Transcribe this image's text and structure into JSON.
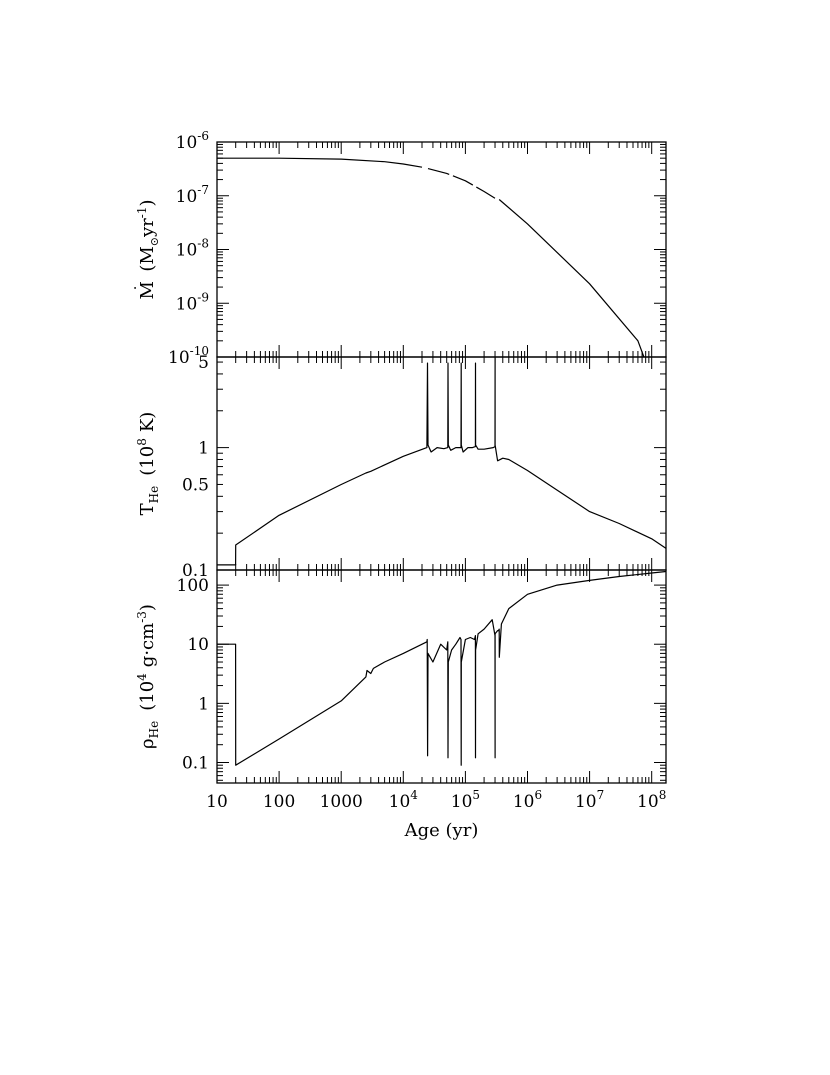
{
  "chart_data": [
    {
      "type": "line",
      "xscale": "log",
      "yscale": "log",
      "xlim": [
        10,
        170000000
      ],
      "ylim": [
        1e-10,
        1e-06
      ],
      "ylabel_main": "M",
      "ylabel_units": "(M",
      "ylabel_units_tail": "yr",
      "ylabel_units_exp": "-1",
      "ylabel_units_close": ")",
      "ylabel_sun": "⊙",
      "ytick_labels": [
        {
          "v": 1e-06,
          "base": "10",
          "exp": "-6"
        },
        {
          "v": 1e-07,
          "base": "10",
          "exp": "-7"
        },
        {
          "v": 1e-08,
          "base": "10",
          "exp": "-8"
        },
        {
          "v": 1e-09,
          "base": "10",
          "exp": "-9"
        },
        {
          "v": 1e-10,
          "base": "10",
          "exp": "-10"
        }
      ],
      "series": [
        {
          "style": "solid",
          "x": [
            10,
            100,
            1000,
            5000,
            10000,
            20000
          ],
          "y": [
            5e-07,
            5e-07,
            4.8e-07,
            4.3e-07,
            3.9e-07,
            3.4e-07
          ]
        },
        {
          "style": "dashed",
          "x": [
            25000,
            50000,
            100000,
            200000,
            300000
          ],
          "y": [
            3.2e-07,
            2.6e-07,
            1.9e-07,
            1.2e-07,
            9e-08
          ]
        },
        {
          "style": "solid",
          "x": [
            350000,
            1000000,
            10000000,
            60000000,
            75000000
          ],
          "y": [
            8.5e-08,
            3e-08,
            2.3e-09,
            2e-10,
            1e-10
          ]
        }
      ]
    },
    {
      "type": "line",
      "xscale": "log",
      "yscale": "log",
      "xlim": [
        10,
        170000000
      ],
      "ylim": [
        0.1,
        5.5
      ],
      "ylabel_main": "T",
      "ylabel_sub": "He",
      "ylabel_units": "(10",
      "ylabel_units_exp": "8",
      "ylabel_units_tail": "K)",
      "ytick_labels": [
        {
          "v": 5,
          "text": "5"
        },
        {
          "v": 1,
          "text": "1"
        },
        {
          "v": 0.5,
          "text": "0.5"
        },
        {
          "v": 0.1,
          "text": "0.1"
        }
      ],
      "series": [
        {
          "style": "solid",
          "x": [
            10,
            19.9,
            20,
            100,
            1000,
            2500,
            3000,
            10000,
            24000,
            24500,
            25000,
            28000,
            35000,
            45000,
            52000,
            52500,
            53000,
            58000,
            70000,
            80000,
            85000,
            85500,
            86000,
            92000,
            110000,
            130000,
            145000,
            145500,
            146000,
            160000,
            200000,
            280000,
            300000,
            300500,
            301000,
            330000,
            400000,
            500000,
            1000000,
            3000000,
            10000000,
            30000000,
            100000000,
            170000000
          ],
          "y": [
            0.11,
            0.11,
            0.16,
            0.28,
            0.5,
            0.62,
            0.64,
            0.85,
            1.0,
            4.9,
            1.05,
            0.92,
            1.0,
            0.98,
            1.0,
            4.9,
            1.05,
            0.95,
            1.0,
            1.0,
            1.0,
            4.9,
            1.05,
            0.92,
            1.0,
            1.0,
            1.02,
            4.9,
            1.05,
            0.97,
            0.97,
            1.0,
            1.02,
            5.5,
            1.05,
            0.78,
            0.82,
            0.8,
            0.65,
            0.45,
            0.3,
            0.24,
            0.18,
            0.15
          ]
        }
      ]
    },
    {
      "type": "line",
      "xscale": "log",
      "yscale": "log",
      "xlim": [
        10,
        170000000
      ],
      "ylim": [
        0.045,
        180
      ],
      "ylabel_main": "ρ",
      "ylabel_sub": "He",
      "ylabel_units": "(10",
      "ylabel_units_exp": "4",
      "ylabel_units_tail": "g·cm",
      "ylabel_units_exp2": "-3",
      "ylabel_units_close": ")",
      "xlabel": "Age (yr)",
      "ytick_labels": [
        {
          "v": 100,
          "text": "100"
        },
        {
          "v": 10,
          "text": "10"
        },
        {
          "v": 1,
          "text": "1"
        },
        {
          "v": 0.1,
          "text": "0.1"
        }
      ],
      "xtick_labels": [
        {
          "v": 10,
          "text": "10"
        },
        {
          "v": 100,
          "text": "100"
        },
        {
          "v": 1000,
          "text": "1000"
        },
        {
          "v": 10000,
          "base": "10",
          "exp": "4"
        },
        {
          "v": 100000,
          "base": "10",
          "exp": "5"
        },
        {
          "v": 1000000,
          "base": "10",
          "exp": "6"
        },
        {
          "v": 10000000,
          "base": "10",
          "exp": "7"
        },
        {
          "v": 100000000,
          "base": "10",
          "exp": "8"
        }
      ],
      "series": [
        {
          "style": "solid",
          "x": [
            10,
            19.5,
            19.9,
            20,
            100,
            1000,
            2500,
            2600,
            3000,
            3300,
            5000,
            10000,
            24000,
            24300,
            24600,
            25000,
            30000,
            40000,
            50000,
            52000,
            52500,
            53000,
            60000,
            70000,
            82000,
            85000,
            85500,
            86000,
            100000,
            120000,
            140000,
            145000,
            145500,
            146000,
            160000,
            200000,
            270000,
            300000,
            300400,
            300800,
            330000,
            340000,
            350000,
            351000,
            380000,
            500000,
            1000000,
            3000000,
            10000000,
            30000000,
            100000000,
            170000000
          ],
          "y": [
            10,
            10,
            10,
            0.09,
            0.25,
            1.1,
            2.8,
            3.6,
            3.2,
            3.9,
            5,
            7,
            11,
            12,
            0.13,
            7,
            5,
            10,
            8,
            11,
            0.12,
            5,
            8,
            10,
            13,
            12,
            0.09,
            5,
            12,
            13,
            12,
            14,
            0.12,
            8,
            15,
            18,
            26,
            14,
            0.12,
            15,
            17,
            17,
            18,
            6,
            22,
            40,
            70,
            100,
            120,
            140,
            160,
            170
          ]
        }
      ]
    }
  ]
}
